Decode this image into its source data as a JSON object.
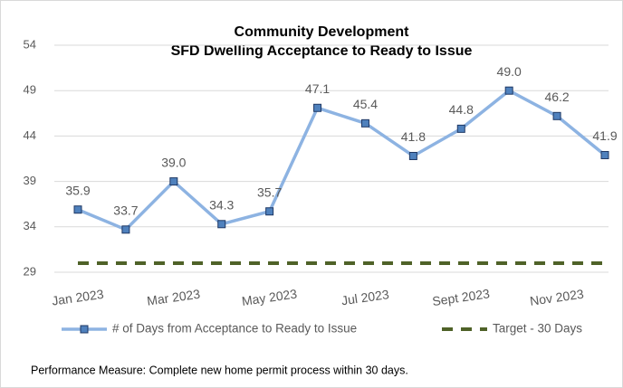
{
  "chart_data": {
    "type": "line",
    "title": "Community Development",
    "subtitle": "SFD Dwelling Acceptance to Ready to Issue",
    "categories": [
      "Jan 2023",
      null,
      "Mar 2023",
      null,
      "May 2023",
      null,
      "Jul 2023",
      null,
      "Sept 2023",
      null,
      "Nov 2023",
      null
    ],
    "series": [
      {
        "name": "# of Days from  Acceptance to Ready to Issue",
        "color": "#8db3e2",
        "marker_color": "#4f81bd",
        "values": [
          35.9,
          33.7,
          39.0,
          34.3,
          35.7,
          47.1,
          45.4,
          41.8,
          44.8,
          49.0,
          46.2,
          41.9
        ],
        "value_labels": [
          "35.9",
          "33.7",
          "39.0",
          "34.3",
          "35.7",
          "47.1",
          "45.4",
          "41.8",
          "44.8",
          "49.0",
          "46.2",
          "41.9"
        ]
      },
      {
        "name": "Target - 30 Days",
        "color": "#4f6228",
        "dashed": true,
        "values": [
          30,
          30,
          30,
          30,
          30,
          30,
          30,
          30,
          30,
          30,
          30,
          30
        ]
      }
    ],
    "ylim": [
      29,
      54
    ],
    "yticks": [
      29,
      34,
      39,
      44,
      49,
      54
    ],
    "grid": true,
    "legend": "bottom",
    "footnote": "Performance Measure: Complete new home permit process within 30 days."
  }
}
